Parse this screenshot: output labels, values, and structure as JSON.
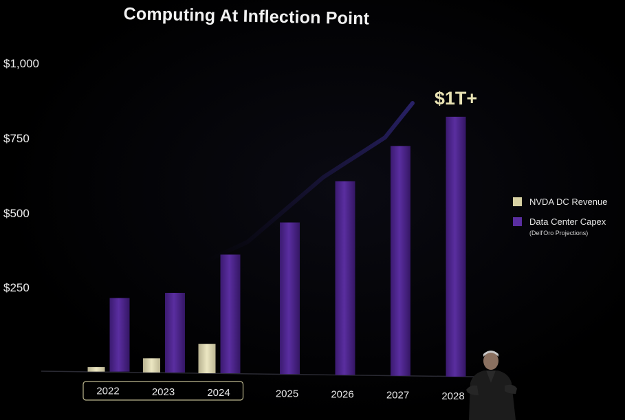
{
  "chart_data": {
    "type": "bar",
    "title": "Computing At Inflection Point",
    "categories": [
      "2022",
      "2023",
      "2024",
      "2025",
      "2026",
      "2027",
      "2028"
    ],
    "highlighted_categories": [
      "2022",
      "2023",
      "2024"
    ],
    "series": [
      {
        "name": "NVDA DC Revenue",
        "color": "#d8d2a4",
        "values": [
          15,
          47,
          98,
          null,
          null,
          null,
          null
        ]
      },
      {
        "name": "Data Center Capex",
        "color": "#4a2585",
        "values": [
          245,
          265,
          395,
          505,
          645,
          765,
          865
        ]
      }
    ],
    "ylim": [
      0,
      1000
    ],
    "yticks": [
      "$1,000",
      "$750",
      "$500",
      "$250"
    ],
    "ytick_values": [
      1000,
      750,
      500,
      250
    ],
    "callout": {
      "text": "$1T+",
      "category": "2028"
    },
    "legend": {
      "position": "right",
      "note": "(Dell'Oro Projections)"
    },
    "xlabel": "",
    "ylabel": ""
  }
}
